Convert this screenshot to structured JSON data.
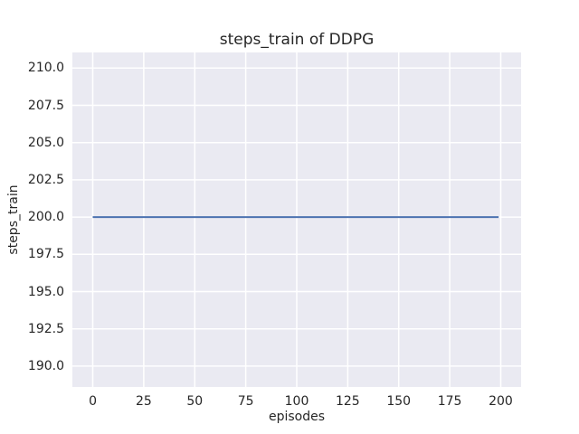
{
  "chart_data": {
    "type": "line",
    "title": "steps_train of DDPG",
    "xlabel": "episodes",
    "ylabel": "steps_train",
    "xlim": [
      -10,
      210
    ],
    "ylim": [
      188.6,
      211.05
    ],
    "x_ticks": [
      0,
      25,
      50,
      75,
      100,
      125,
      150,
      175,
      200
    ],
    "x_tick_labels": [
      "0",
      "25",
      "50",
      "75",
      "100",
      "125",
      "150",
      "175",
      "200"
    ],
    "y_ticks": [
      190.0,
      192.5,
      195.0,
      197.5,
      200.0,
      202.5,
      205.0,
      207.5,
      210.0
    ],
    "y_tick_labels": [
      "190.0",
      "192.5",
      "195.0",
      "197.5",
      "200.0",
      "202.5",
      "205.0",
      "207.5",
      "210.0"
    ],
    "grid": true,
    "legend": "none",
    "series": [
      {
        "name": "steps_train",
        "x": [
          0,
          199
        ],
        "values": [
          200,
          200
        ],
        "color": "#4c72b0",
        "line_width": 2
      }
    ],
    "colors": {
      "plot_background": "#eaeaf2",
      "grid_line": "#ffffff",
      "figure_background": "#ffffff",
      "text": "#262626"
    }
  }
}
